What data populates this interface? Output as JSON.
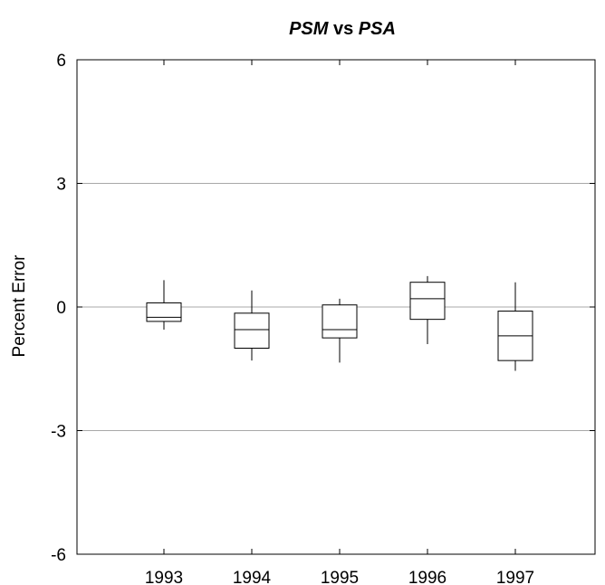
{
  "chart_data": {
    "type": "boxplot",
    "title": {
      "part1": "PSM",
      "part2": " vs ",
      "part3": "PSA"
    },
    "xlabel": "",
    "ylabel": "Percent Error",
    "ylim": [
      -6,
      6
    ],
    "yticks": [
      6,
      3,
      0,
      -3,
      -6
    ],
    "grid_y": [
      3,
      0,
      -3
    ],
    "categories": [
      "1993",
      "1994",
      "1995",
      "1996",
      "1997"
    ],
    "boxes": [
      {
        "category": "1993",
        "whisker_low": -0.55,
        "q1": -0.35,
        "median": -0.25,
        "q3": 0.1,
        "whisker_high": 0.65
      },
      {
        "category": "1994",
        "whisker_low": -1.3,
        "q1": -1.0,
        "median": -0.55,
        "q3": -0.15,
        "whisker_high": 0.4
      },
      {
        "category": "1995",
        "whisker_low": -1.35,
        "q1": -0.75,
        "median": -0.55,
        "q3": 0.05,
        "whisker_high": 0.2
      },
      {
        "category": "1996",
        "whisker_low": -0.9,
        "q1": -0.3,
        "median": 0.2,
        "q3": 0.6,
        "whisker_high": 0.75
      },
      {
        "category": "1997",
        "whisker_low": -1.55,
        "q1": -1.3,
        "median": -0.7,
        "q3": -0.1,
        "whisker_high": 0.6
      }
    ]
  }
}
